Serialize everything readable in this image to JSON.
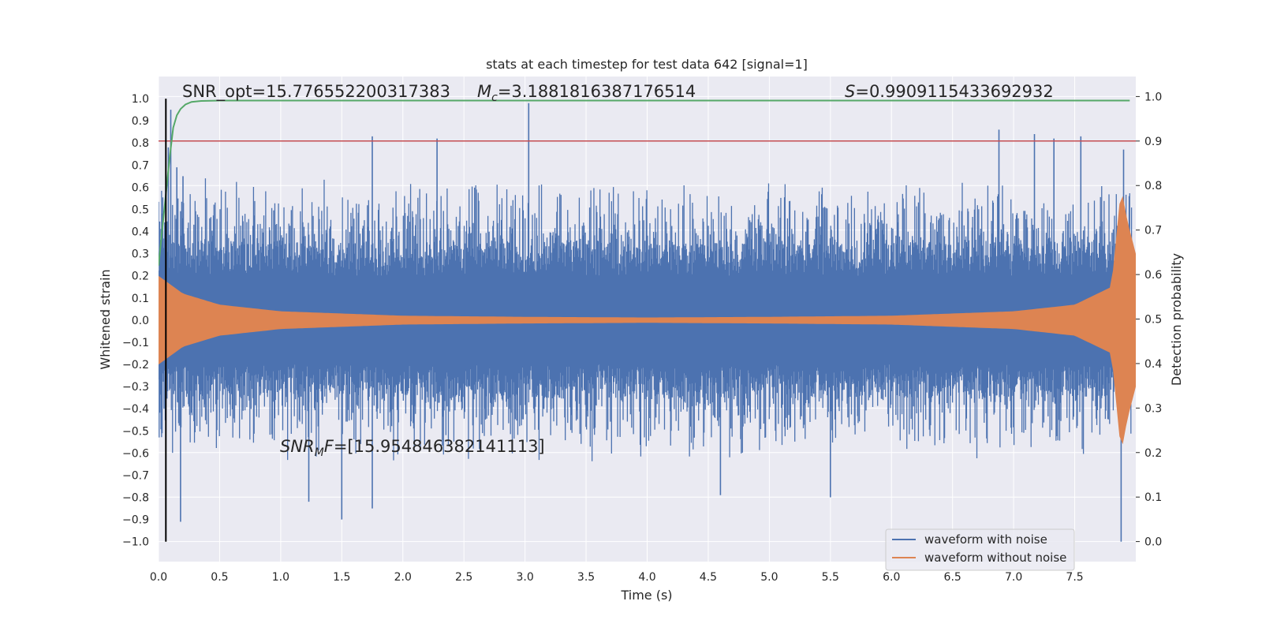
{
  "chart_data": {
    "type": "line",
    "title": "stats at each timestep for test data 642 [signal=1]",
    "xlabel": "Time (s)",
    "ylabel": "Whitened strain",
    "y2label": "Detection probability",
    "xlim": [
      0.0,
      8.0
    ],
    "ylim": [
      -1.09,
      1.1
    ],
    "y2lim": [
      -0.045,
      1.045
    ],
    "x_ticks": [
      "0.0",
      "0.5",
      "1.0",
      "1.5",
      "2.0",
      "2.5",
      "3.0",
      "3.5",
      "4.0",
      "4.5",
      "5.0",
      "5.5",
      "6.0",
      "6.5",
      "7.0",
      "7.5"
    ],
    "y_ticks": [
      "1.0",
      "0.9",
      "0.8",
      "0.7",
      "0.6",
      "0.5",
      "0.4",
      "0.3",
      "0.2",
      "0.1",
      "0.0",
      "-0.1",
      "-0.2",
      "-0.3",
      "-0.4",
      "-0.5",
      "-0.6",
      "-0.7",
      "-0.8",
      "-0.9",
      "-1.0"
    ],
    "y2_ticks": [
      "1.0",
      "0.9",
      "0.8",
      "0.7",
      "0.6",
      "0.5",
      "0.4",
      "0.3",
      "0.2",
      "0.1",
      "0.0"
    ],
    "grid": true,
    "legend_position": "bottom-right",
    "annotations": {
      "snr_opt": "SNR_opt=15.776552200317383",
      "mc_symbol": "M",
      "mc_sub": "c",
      "mc_value": "=3.1881816387176514",
      "s_symbol": "S",
      "s_value": "=0.9909115433692932",
      "snr_mf_symbol": "SNR",
      "snr_mf_sub": "M",
      "snr_mf_f": "F",
      "snr_mf_value": "=[15.954846382141113]"
    },
    "series": [
      {
        "name": "waveform with noise",
        "color": "#4c72b0",
        "description_peaks_pos": [
          [
            0.08,
            0.78
          ],
          [
            0.1,
            0.95
          ],
          [
            0.15,
            0.69
          ],
          [
            0.2,
            0.65
          ],
          [
            1.75,
            0.83
          ],
          [
            2.28,
            0.82
          ],
          [
            3.03,
            0.98
          ],
          [
            6.88,
            0.86
          ],
          [
            7.17,
            0.84
          ],
          [
            7.33,
            0.82
          ],
          [
            7.55,
            0.83
          ],
          [
            7.9,
            0.77
          ]
        ],
        "description_peaks_neg": [
          [
            0.18,
            -0.91
          ],
          [
            1.23,
            -0.82
          ],
          [
            1.5,
            -0.9
          ],
          [
            1.75,
            -0.85
          ],
          [
            4.6,
            -0.79
          ],
          [
            5.5,
            -0.8
          ],
          [
            7.88,
            -1.0
          ]
        ]
      },
      {
        "name": "waveform without noise",
        "color": "#dd8452",
        "envelope": [
          [
            0.0,
            0.2
          ],
          [
            0.2,
            0.12
          ],
          [
            0.5,
            0.07
          ],
          [
            1.0,
            0.04
          ],
          [
            2.0,
            0.02
          ],
          [
            3.0,
            0.015
          ],
          [
            4.0,
            0.012
          ],
          [
            5.0,
            0.015
          ],
          [
            6.0,
            0.02
          ],
          [
            7.0,
            0.04
          ],
          [
            7.5,
            0.07
          ],
          [
            7.8,
            0.15
          ],
          [
            7.88,
            0.6
          ],
          [
            7.93,
            0.45
          ],
          [
            8.0,
            0.3
          ]
        ]
      },
      {
        "name": "",
        "axis": "right",
        "color": "#55a868",
        "x": [
          0.0,
          0.03,
          0.06,
          0.09,
          0.12,
          0.15,
          0.18,
          0.22,
          0.27,
          0.35,
          0.5,
          1.0,
          2.0,
          4.0,
          6.0,
          7.0,
          7.95
        ],
        "y": [
          0.62,
          0.7,
          0.78,
          0.86,
          0.93,
          0.958,
          0.972,
          0.982,
          0.988,
          0.99,
          0.991,
          0.991,
          0.991,
          0.991,
          0.991,
          0.991,
          0.991
        ]
      }
    ],
    "threshold_line": {
      "axis": "right",
      "y": 0.9,
      "color": "#c44e52"
    },
    "vertical_marker": {
      "x": 0.06,
      "y_from": -1.0,
      "y_to": 1.0,
      "color": "#000000"
    }
  }
}
